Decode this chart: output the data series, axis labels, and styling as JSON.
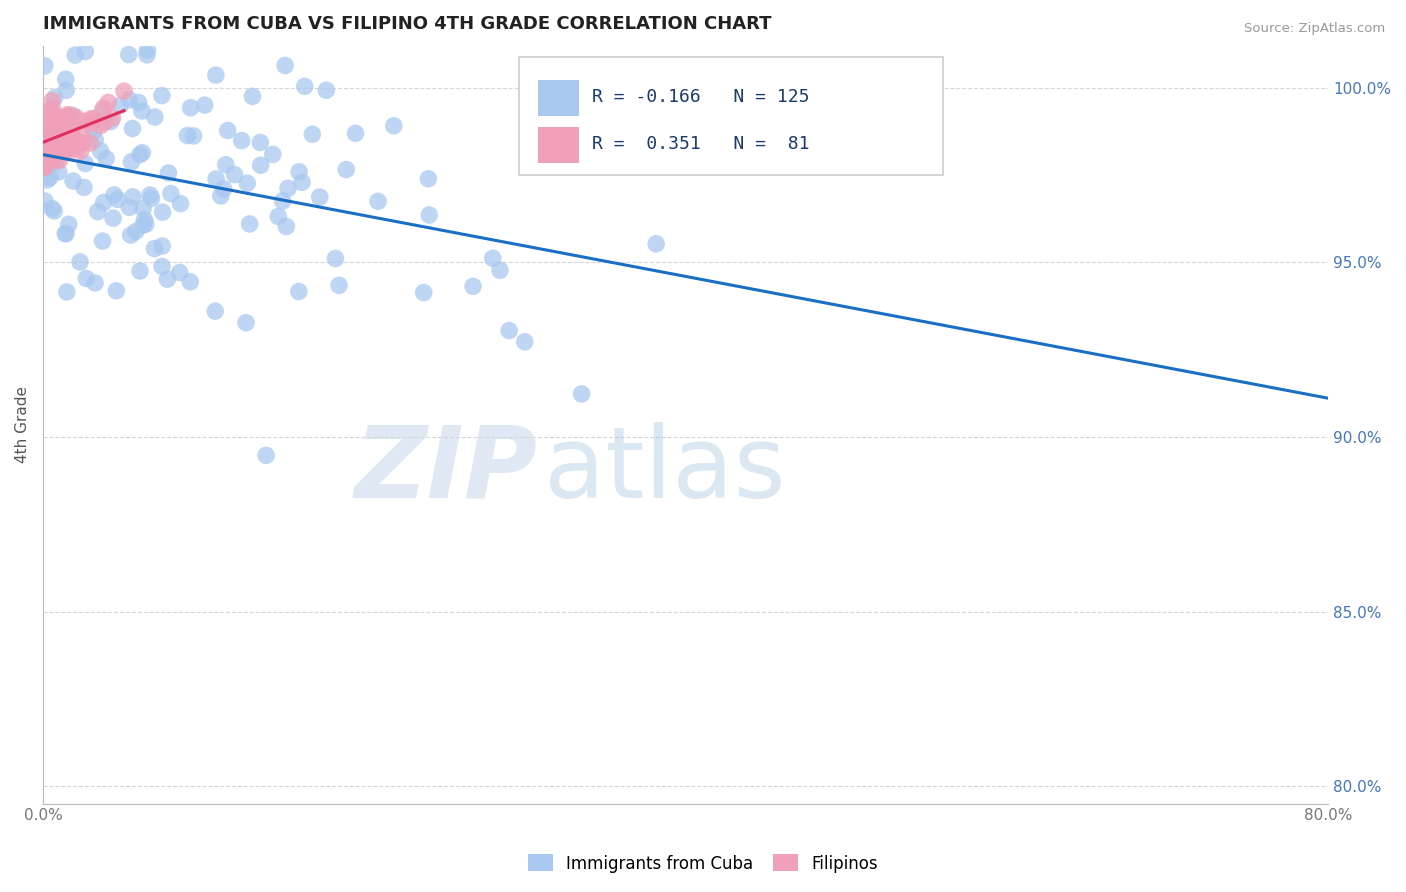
{
  "title": "IMMIGRANTS FROM CUBA VS FILIPINO 4TH GRADE CORRELATION CHART",
  "source_text": "Source: ZipAtlas.com",
  "ylabel": "4th Grade",
  "xlim": [
    0.0,
    0.8
  ],
  "ylim": [
    0.795,
    1.012
  ],
  "xticks": [
    0.0,
    0.1,
    0.2,
    0.3,
    0.4,
    0.5,
    0.6,
    0.7,
    0.8
  ],
  "xticklabels": [
    "0.0%",
    "",
    "",
    "",
    "",
    "",
    "",
    "",
    "80.0%"
  ],
  "yticks": [
    0.8,
    0.85,
    0.9,
    0.95,
    1.0
  ],
  "yticklabels": [
    "80.0%",
    "85.0%",
    "90.0%",
    "95.0%",
    "100.0%"
  ],
  "legend_label1": "Immigrants from Cuba",
  "legend_label2": "Filipinos",
  "R1": -0.166,
  "N1": 125,
  "R2": 0.351,
  "N2": 81,
  "color1": "#a8c8f0",
  "color2": "#f0a0b8",
  "line_color1": "#1a6fc4",
  "line_color2": "#e03060",
  "watermark_left": "ZIP",
  "watermark_right": "atlas",
  "background_color": "#ffffff",
  "grid_color": "#cccccc",
  "title_color": "#222222",
  "title_fontsize": 13,
  "axis_label_color": "#555555",
  "tick_color": "#777777",
  "right_tick_color": "#4477bb"
}
